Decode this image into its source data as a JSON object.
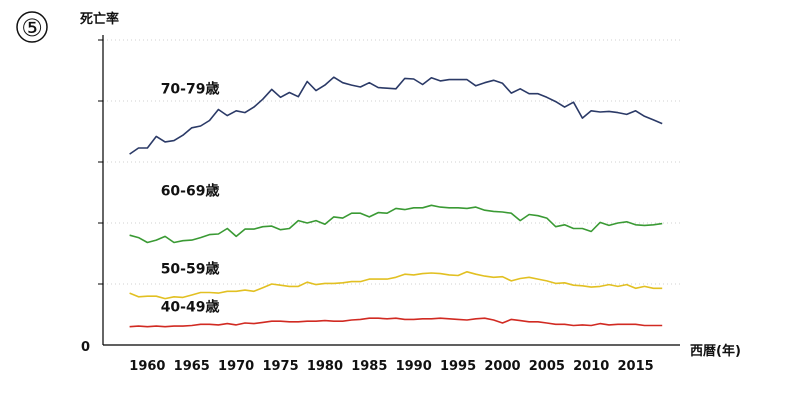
{
  "badge": "⑤",
  "chart_data": {
    "type": "line",
    "ylabel": "死亡率",
    "xlabel": "西暦(年)",
    "y_origin_label": "0",
    "xlim": [
      1955,
      2020
    ],
    "ylim": [
      0,
      50
    ],
    "x_ticks": [
      1960,
      1965,
      1970,
      1975,
      1980,
      1985,
      1990,
      1995,
      2000,
      2005,
      2010,
      2015
    ],
    "y_gridlines": [
      10,
      20,
      30,
      40,
      50
    ],
    "grid": true,
    "legend": "inline labels",
    "x": [
      1958,
      1959,
      1960,
      1961,
      1962,
      1963,
      1964,
      1965,
      1966,
      1967,
      1968,
      1969,
      1970,
      1971,
      1972,
      1973,
      1974,
      1975,
      1976,
      1977,
      1978,
      1979,
      1980,
      1981,
      1982,
      1983,
      1984,
      1985,
      1986,
      1987,
      1988,
      1989,
      1990,
      1991,
      1992,
      1993,
      1994,
      1995,
      1996,
      1997,
      1998,
      1999,
      2000,
      2001,
      2002,
      2003,
      2004,
      2005,
      2006,
      2007,
      2008,
      2009,
      2010,
      2011,
      2012,
      2013,
      2014,
      2015,
      2016,
      2017,
      2018
    ],
    "series": [
      {
        "name": "70-79歳",
        "color": "#2b3a67",
        "values": [
          31.3,
          32.3,
          32.3,
          34.2,
          33.3,
          33.5,
          34.4,
          35.6,
          35.9,
          36.8,
          38.6,
          37.6,
          38.4,
          38.1,
          39.0,
          40.3,
          41.9,
          40.6,
          41.4,
          40.7,
          43.2,
          41.7,
          42.6,
          43.9,
          43.0,
          42.6,
          42.3,
          43.0,
          42.2,
          42.1,
          42.0,
          43.7,
          43.6,
          42.7,
          43.8,
          43.3,
          43.5,
          43.5,
          43.5,
          42.5,
          43.0,
          43.4,
          42.9,
          41.3,
          42.0,
          41.2,
          41.2,
          40.6,
          39.9,
          39.0,
          39.8,
          37.2,
          38.4,
          38.2,
          38.3,
          38.1,
          37.8,
          38.4,
          37.5,
          36.9,
          36.3
        ]
      },
      {
        "name": "60-69歳",
        "color": "#3a9a34",
        "values": [
          18.0,
          17.6,
          16.8,
          17.2,
          17.8,
          16.8,
          17.1,
          17.2,
          17.6,
          18.1,
          18.2,
          19.1,
          17.8,
          19.0,
          19.0,
          19.4,
          19.5,
          18.9,
          19.1,
          20.4,
          20.0,
          20.4,
          19.8,
          21.0,
          20.8,
          21.6,
          21.6,
          21.0,
          21.7,
          21.6,
          22.4,
          22.2,
          22.5,
          22.5,
          22.9,
          22.6,
          22.5,
          22.5,
          22.4,
          22.6,
          22.1,
          21.9,
          21.8,
          21.6,
          20.4,
          21.4,
          21.2,
          20.8,
          19.4,
          19.7,
          19.1,
          19.1,
          18.6,
          20.1,
          19.6,
          20.0,
          20.2,
          19.7,
          19.6,
          19.7,
          19.9
        ]
      },
      {
        "name": "50-59歳",
        "color": "#e2c022",
        "values": [
          8.5,
          7.9,
          8.0,
          8.0,
          7.6,
          7.9,
          7.8,
          8.2,
          8.6,
          8.6,
          8.5,
          8.8,
          8.8,
          9.0,
          8.8,
          9.4,
          10.0,
          9.8,
          9.6,
          9.6,
          10.3,
          9.9,
          10.1,
          10.1,
          10.2,
          10.4,
          10.4,
          10.8,
          10.8,
          10.8,
          11.1,
          11.6,
          11.5,
          11.7,
          11.8,
          11.7,
          11.5,
          11.4,
          12.0,
          11.6,
          11.3,
          11.1,
          11.2,
          10.5,
          10.9,
          11.1,
          10.8,
          10.5,
          10.1,
          10.2,
          9.8,
          9.7,
          9.5,
          9.6,
          9.9,
          9.6,
          9.9,
          9.3,
          9.6,
          9.3,
          9.3
        ]
      },
      {
        "name": "40-49歳",
        "color": "#d12a22",
        "values": [
          3.0,
          3.1,
          3.0,
          3.1,
          3.0,
          3.1,
          3.1,
          3.2,
          3.4,
          3.4,
          3.3,
          3.5,
          3.3,
          3.6,
          3.5,
          3.7,
          3.9,
          3.9,
          3.8,
          3.8,
          3.9,
          3.9,
          4.0,
          3.9,
          3.9,
          4.1,
          4.2,
          4.4,
          4.4,
          4.3,
          4.4,
          4.2,
          4.2,
          4.3,
          4.3,
          4.4,
          4.3,
          4.2,
          4.1,
          4.3,
          4.4,
          4.1,
          3.6,
          4.2,
          4.0,
          3.8,
          3.8,
          3.6,
          3.4,
          3.4,
          3.2,
          3.3,
          3.2,
          3.5,
          3.3,
          3.4,
          3.4,
          3.4,
          3.2,
          3.2,
          3.2
        ]
      }
    ]
  }
}
